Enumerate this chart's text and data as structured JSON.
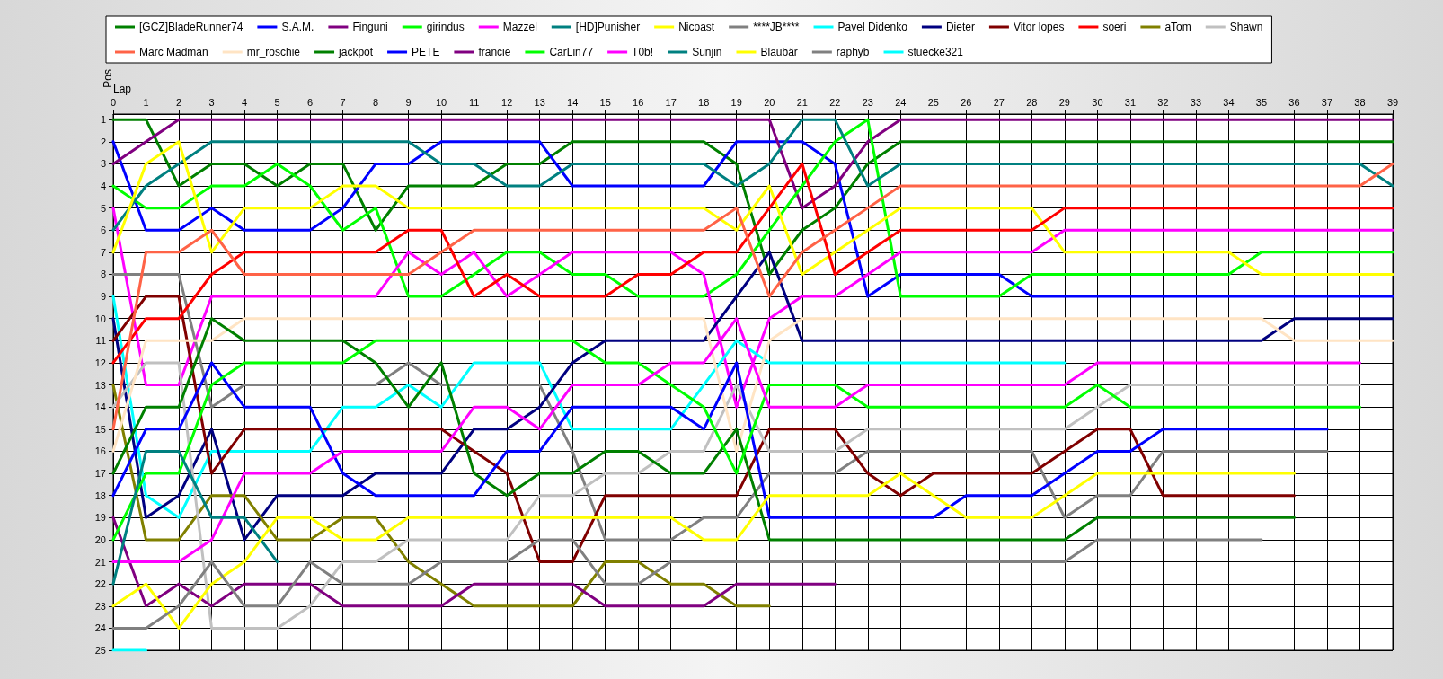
{
  "chart_data": {
    "type": "line",
    "xlabel": "Lap",
    "ylabel": "Pos",
    "x": [
      0,
      1,
      2,
      3,
      4,
      5,
      6,
      7,
      8,
      9,
      10,
      11,
      12,
      13,
      14,
      15,
      16,
      17,
      18,
      19,
      20,
      21,
      22,
      23,
      24,
      25,
      26,
      27,
      28,
      29,
      30,
      31,
      32,
      33,
      34,
      35,
      36,
      37,
      38,
      39
    ],
    "xlim": [
      0,
      39
    ],
    "xticks": [
      0,
      1,
      2,
      3,
      4,
      5,
      6,
      7,
      8,
      9,
      10,
      11,
      12,
      13,
      14,
      15,
      16,
      17,
      18,
      19,
      20,
      21,
      22,
      23,
      24,
      25,
      26,
      27,
      28,
      29,
      30,
      31,
      32,
      33,
      34,
      35,
      36,
      37,
      38,
      39
    ],
    "ylim": [
      25,
      0.75
    ],
    "yticks": [
      1,
      2,
      3,
      4,
      5,
      6,
      7,
      8,
      9,
      10,
      11,
      12,
      13,
      14,
      15,
      16,
      17,
      18,
      19,
      20,
      21,
      22,
      23,
      24,
      25
    ],
    "grid": true,
    "legend": "top",
    "marker": "none",
    "line_style": "solid",
    "series": [
      {
        "name": "[GCZ]BladeRunner74",
        "color": "#008000",
        "values": [
          1,
          1,
          4,
          3,
          3,
          4,
          3,
          3,
          6,
          4,
          4,
          4,
          3,
          3,
          2,
          2,
          2,
          2,
          2,
          3,
          8,
          6,
          5,
          3,
          2,
          2,
          2,
          2,
          2,
          2,
          2,
          2,
          2,
          2,
          2,
          2,
          2,
          2,
          2,
          2
        ]
      },
      {
        "name": "S.A.M.",
        "color": "#0000ff",
        "values": [
          2,
          6,
          6,
          5,
          6,
          6,
          6,
          5,
          3,
          3,
          2,
          2,
          2,
          2,
          4,
          4,
          4,
          4,
          4,
          2,
          2,
          2,
          3,
          9,
          8,
          8,
          8,
          8,
          9,
          9,
          9,
          9,
          9,
          9,
          9,
          9,
          9,
          9,
          9,
          9
        ]
      },
      {
        "name": "Finguni",
        "color": "#800080",
        "values": [
          3,
          2,
          1,
          1,
          1,
          1,
          1,
          1,
          1,
          1,
          1,
          1,
          1,
          1,
          1,
          1,
          1,
          1,
          1,
          1,
          1,
          5,
          4,
          2,
          1,
          1,
          1,
          1,
          1,
          1,
          1,
          1,
          1,
          1,
          1,
          1,
          1,
          1,
          1,
          1
        ]
      },
      {
        "name": "girindus",
        "color": "#00ff00",
        "values": [
          4,
          5,
          5,
          4,
          4,
          3,
          4,
          6,
          5,
          9,
          9,
          8,
          7,
          7,
          8,
          8,
          9,
          9,
          9,
          8,
          6,
          4,
          2,
          1,
          9,
          9,
          9,
          9,
          8,
          8,
          8,
          8,
          8,
          8,
          8,
          7,
          7,
          7,
          7,
          7
        ]
      },
      {
        "name": "Mazzel",
        "color": "#ff00ff",
        "values": [
          5,
          13,
          13,
          9,
          9,
          9,
          9,
          9,
          9,
          7,
          8,
          7,
          9,
          8,
          7,
          7,
          7,
          7,
          8,
          14,
          10,
          9,
          9,
          8,
          7,
          7,
          7,
          7,
          7,
          6,
          6,
          6,
          6,
          6,
          6,
          6,
          6,
          6,
          6,
          6
        ]
      },
      {
        "name": "[HD]Punisher",
        "color": "#008080",
        "values": [
          6,
          4,
          3,
          2,
          2,
          2,
          2,
          2,
          2,
          2,
          3,
          3,
          4,
          4,
          3,
          3,
          3,
          3,
          3,
          4,
          3,
          1,
          1,
          4,
          3,
          3,
          3,
          3,
          3,
          3,
          3,
          3,
          3,
          3,
          3,
          3,
          3,
          3,
          3,
          4
        ]
      },
      {
        "name": "Nicoast",
        "color": "#ffff00",
        "values": [
          7,
          3,
          2,
          7,
          5,
          5,
          5,
          4,
          4,
          5,
          5,
          5,
          5,
          5,
          5,
          5,
          5,
          5,
          5,
          6,
          4,
          8,
          7,
          6,
          5,
          5,
          5,
          5,
          5,
          7,
          7,
          7,
          7,
          7,
          7,
          8,
          8,
          8,
          8,
          8
        ]
      },
      {
        "name": "****JB****",
        "color": "#808080",
        "values": [
          8,
          8,
          8,
          14,
          13,
          13,
          13,
          13,
          13,
          12,
          13,
          13,
          13,
          13,
          16,
          20,
          20,
          20,
          19,
          19,
          17,
          17,
          17,
          16,
          16,
          16,
          16,
          16,
          16,
          19,
          18,
          18,
          16,
          16,
          16,
          16,
          16,
          16,
          null,
          null
        ]
      },
      {
        "name": "Pavel Didenko",
        "color": "#00ffff",
        "values": [
          9,
          18,
          19,
          16,
          16,
          16,
          16,
          14,
          14,
          13,
          14,
          12,
          12,
          12,
          15,
          15,
          15,
          15,
          13,
          11,
          12,
          12,
          12,
          12,
          12,
          12,
          12,
          12,
          12,
          12,
          null,
          null,
          null,
          null,
          null,
          null,
          null,
          null,
          null,
          null
        ]
      },
      {
        "name": "Dieter",
        "color": "#000080",
        "values": [
          10,
          19,
          18,
          15,
          20,
          18,
          18,
          18,
          17,
          17,
          17,
          15,
          15,
          14,
          12,
          11,
          11,
          11,
          11,
          9,
          7,
          11,
          11,
          11,
          11,
          11,
          11,
          11,
          11,
          11,
          11,
          11,
          11,
          11,
          11,
          11,
          10,
          10,
          10,
          10
        ]
      },
      {
        "name": "Vitor lopes",
        "color": "#800000",
        "values": [
          11,
          9,
          9,
          17,
          15,
          15,
          15,
          15,
          15,
          15,
          15,
          16,
          17,
          21,
          21,
          18,
          18,
          18,
          18,
          18,
          15,
          15,
          15,
          17,
          18,
          17,
          17,
          17,
          17,
          16,
          15,
          15,
          18,
          18,
          18,
          18,
          18,
          null,
          null,
          null
        ]
      },
      {
        "name": "soeri",
        "color": "#ff0000",
        "values": [
          12,
          10,
          10,
          8,
          7,
          7,
          7,
          7,
          7,
          6,
          6,
          9,
          8,
          9,
          9,
          9,
          8,
          8,
          7,
          7,
          5,
          3,
          8,
          7,
          6,
          6,
          6,
          6,
          6,
          5,
          5,
          5,
          5,
          5,
          5,
          5,
          5,
          5,
          5,
          5
        ]
      },
      {
        "name": "aTom",
        "color": "#808000",
        "values": [
          13,
          20,
          20,
          18,
          18,
          20,
          20,
          19,
          19,
          21,
          22,
          23,
          23,
          23,
          23,
          21,
          21,
          22,
          22,
          23,
          23,
          null,
          null,
          null,
          null,
          null,
          null,
          null,
          null,
          null,
          null,
          null,
          null,
          null,
          null,
          null,
          null,
          null,
          null,
          null
        ]
      },
      {
        "name": "Shawn",
        "color": "#c0c0c0",
        "values": [
          14,
          12,
          12,
          24,
          24,
          24,
          23,
          21,
          21,
          20,
          20,
          20,
          20,
          18,
          18,
          17,
          17,
          16,
          16,
          13,
          16,
          16,
          16,
          15,
          15,
          15,
          15,
          15,
          15,
          15,
          14,
          13,
          13,
          13,
          13,
          13,
          13,
          13,
          13,
          null
        ]
      },
      {
        "name": "Marc Madman",
        "color": "#ff6347",
        "values": [
          15,
          7,
          7,
          6,
          8,
          8,
          8,
          8,
          8,
          8,
          7,
          6,
          6,
          6,
          6,
          6,
          6,
          6,
          6,
          5,
          9,
          7,
          6,
          5,
          4,
          4,
          4,
          4,
          4,
          4,
          4,
          4,
          4,
          4,
          4,
          4,
          4,
          4,
          4,
          3
        ]
      },
      {
        "name": "mr_roschie",
        "color": "#ffe4c4",
        "values": [
          16,
          11,
          11,
          11,
          10,
          10,
          10,
          10,
          10,
          10,
          10,
          10,
          10,
          10,
          10,
          10,
          10,
          10,
          10,
          16,
          11,
          10,
          10,
          10,
          10,
          10,
          10,
          10,
          10,
          10,
          10,
          10,
          10,
          10,
          10,
          10,
          11,
          11,
          11,
          11
        ]
      },
      {
        "name": "jackpot",
        "color": "#008000",
        "values": [
          17,
          14,
          14,
          10,
          11,
          11,
          11,
          11,
          12,
          14,
          12,
          17,
          18,
          17,
          17,
          16,
          16,
          17,
          17,
          15,
          20,
          20,
          20,
          20,
          20,
          20,
          20,
          20,
          20,
          20,
          19,
          19,
          19,
          19,
          19,
          19,
          19,
          null,
          null,
          null
        ]
      },
      {
        "name": "PETE",
        "color": "#0000ff",
        "values": [
          18,
          15,
          15,
          12,
          14,
          14,
          14,
          17,
          18,
          18,
          18,
          18,
          16,
          16,
          14,
          14,
          14,
          14,
          15,
          12,
          19,
          19,
          19,
          19,
          19,
          19,
          18,
          18,
          18,
          17,
          16,
          16,
          15,
          15,
          15,
          15,
          15,
          15,
          null,
          null
        ]
      },
      {
        "name": "francie",
        "color": "#800080",
        "values": [
          19,
          23,
          22,
          23,
          22,
          22,
          22,
          23,
          23,
          23,
          23,
          22,
          22,
          22,
          22,
          23,
          23,
          23,
          23,
          22,
          22,
          22,
          22,
          null,
          null,
          null,
          null,
          null,
          null,
          null,
          null,
          null,
          null,
          null,
          null,
          null,
          null,
          null,
          null,
          null
        ]
      },
      {
        "name": "CarLin77",
        "color": "#00ff00",
        "values": [
          20,
          17,
          17,
          13,
          12,
          12,
          12,
          12,
          11,
          11,
          11,
          11,
          11,
          11,
          11,
          12,
          12,
          13,
          14,
          17,
          13,
          13,
          13,
          14,
          14,
          14,
          14,
          14,
          14,
          14,
          13,
          14,
          14,
          14,
          14,
          14,
          14,
          14,
          14,
          null
        ]
      },
      {
        "name": "T0b!",
        "color": "#ff00ff",
        "values": [
          21,
          21,
          21,
          20,
          17,
          17,
          17,
          16,
          16,
          16,
          16,
          14,
          14,
          15,
          13,
          13,
          13,
          12,
          12,
          10,
          14,
          14,
          14,
          13,
          13,
          13,
          13,
          13,
          13,
          13,
          12,
          12,
          12,
          12,
          12,
          12,
          12,
          12,
          12,
          null
        ]
      },
      {
        "name": "Sunjin",
        "color": "#008080",
        "values": [
          22,
          16,
          16,
          19,
          19,
          21,
          null,
          null,
          null,
          null,
          null,
          null,
          null,
          null,
          null,
          null,
          null,
          null,
          null,
          null,
          null,
          null,
          null,
          null,
          null,
          null,
          null,
          null,
          null,
          null,
          null,
          null,
          null,
          null,
          null,
          null,
          null,
          null,
          null,
          null
        ]
      },
      {
        "name": "Blaubär",
        "color": "#ffff00",
        "values": [
          23,
          22,
          24,
          22,
          21,
          19,
          19,
          20,
          20,
          19,
          19,
          19,
          19,
          19,
          19,
          19,
          19,
          19,
          20,
          20,
          18,
          18,
          18,
          18,
          17,
          18,
          19,
          19,
          19,
          18,
          17,
          17,
          17,
          17,
          17,
          17,
          17,
          null,
          null,
          null
        ]
      },
      {
        "name": "raphyb",
        "color": "#808080",
        "values": [
          24,
          24,
          23,
          21,
          23,
          23,
          21,
          22,
          22,
          22,
          21,
          21,
          21,
          20,
          20,
          22,
          22,
          21,
          21,
          21,
          21,
          21,
          21,
          21,
          21,
          21,
          21,
          21,
          21,
          21,
          20,
          20,
          20,
          20,
          20,
          20,
          null,
          null,
          null,
          null
        ]
      },
      {
        "name": "stuecke321",
        "color": "#00ffff",
        "values": [
          25,
          25,
          null,
          null,
          null,
          null,
          null,
          null,
          null,
          null,
          null,
          null,
          null,
          null,
          null,
          null,
          null,
          null,
          null,
          null,
          null,
          null,
          null,
          null,
          null,
          null,
          null,
          null,
          null,
          null,
          null,
          null,
          null,
          null,
          null,
          null,
          null,
          null,
          null,
          null
        ]
      }
    ]
  }
}
